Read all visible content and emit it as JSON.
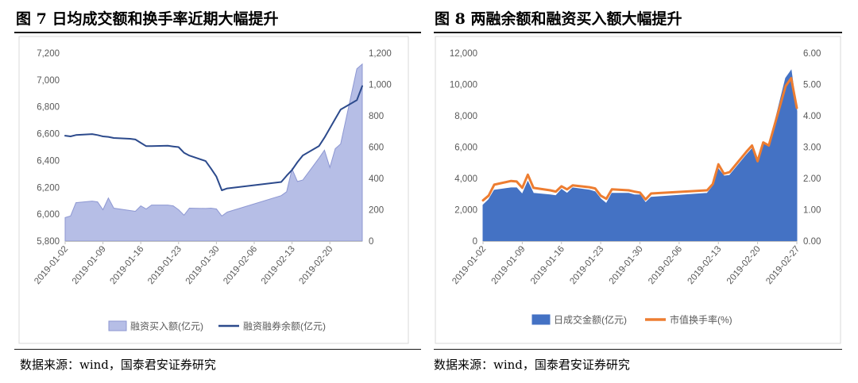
{
  "colors": {
    "fig7_area_fill": "#b6bee6",
    "fig7_area_stroke": "#8d97d2",
    "fig7_line": "#2c4a8c",
    "fig8_area": "#4472c4",
    "fig8_line": "#ed7d31",
    "tick_text": "#595959",
    "axis": "#bfbfbf",
    "chart_bg": "#ffffff"
  },
  "source_label": "数据来源：wind，国泰君安证券研究",
  "chart_data": [
    {
      "type": "area+line",
      "title": "图 7  日均成交额和换手率近期大幅提升",
      "x_ticks": [
        "2019-01-02",
        "2019-01-09",
        "2019-01-16",
        "2019-01-23",
        "2019-01-30",
        "2019-02-06",
        "2019-02-13",
        "2019-02-20"
      ],
      "y_left_ticks": [
        "5,800",
        "6,000",
        "6,200",
        "6,400",
        "6,600",
        "6,800",
        "7,000",
        "7,200"
      ],
      "y_left_range": [
        5800,
        7200
      ],
      "y_right_ticks": [
        "0",
        "200",
        "400",
        "600",
        "800",
        "1,000",
        "1,200"
      ],
      "y_right_range": [
        0,
        1200
      ],
      "legend_position": "bottom",
      "series": [
        {
          "name": "融资买入额(亿元)",
          "kind": "area",
          "axis": "right",
          "points": [
            [
              "2019-01-02",
              150
            ],
            [
              "2019-01-03",
              160
            ],
            [
              "2019-01-04",
              245
            ],
            [
              "2019-01-07",
              255
            ],
            [
              "2019-01-08",
              250
            ],
            [
              "2019-01-09",
              200
            ],
            [
              "2019-01-10",
              275
            ],
            [
              "2019-01-11",
              210
            ],
            [
              "2019-01-14",
              195
            ],
            [
              "2019-01-15",
              190
            ],
            [
              "2019-01-16",
              225
            ],
            [
              "2019-01-17",
              205
            ],
            [
              "2019-01-18",
              230
            ],
            [
              "2019-01-21",
              230
            ],
            [
              "2019-01-22",
              225
            ],
            [
              "2019-01-23",
              200
            ],
            [
              "2019-01-24",
              165
            ],
            [
              "2019-01-25",
              210
            ],
            [
              "2019-01-28",
              208
            ],
            [
              "2019-01-29",
              210
            ],
            [
              "2019-01-30",
              205
            ],
            [
              "2019-01-31",
              160
            ],
            [
              "2019-02-01",
              185
            ],
            [
              "2019-02-11",
              290
            ],
            [
              "2019-02-12",
              315
            ],
            [
              "2019-02-13",
              460
            ],
            [
              "2019-02-14",
              380
            ],
            [
              "2019-02-15",
              390
            ],
            [
              "2019-02-18",
              530
            ],
            [
              "2019-02-19",
              580
            ],
            [
              "2019-02-20",
              470
            ],
            [
              "2019-02-21",
              590
            ],
            [
              "2019-02-22",
              620
            ],
            [
              "2019-02-25",
              1100
            ],
            [
              "2019-02-26",
              1130
            ]
          ]
        },
        {
          "name": "融资融券余额(亿元)",
          "kind": "line",
          "axis": "left",
          "points": [
            [
              "2019-01-02",
              6585
            ],
            [
              "2019-01-03",
              6580
            ],
            [
              "2019-01-04",
              6590
            ],
            [
              "2019-01-07",
              6597
            ],
            [
              "2019-01-08",
              6590
            ],
            [
              "2019-01-09",
              6580
            ],
            [
              "2019-01-10",
              6576
            ],
            [
              "2019-01-11",
              6568
            ],
            [
              "2019-01-14",
              6562
            ],
            [
              "2019-01-15",
              6557
            ],
            [
              "2019-01-16",
              6532
            ],
            [
              "2019-01-17",
              6507
            ],
            [
              "2019-01-18",
              6507
            ],
            [
              "2019-01-21",
              6510
            ],
            [
              "2019-01-22",
              6505
            ],
            [
              "2019-01-23",
              6500
            ],
            [
              "2019-01-24",
              6458
            ],
            [
              "2019-01-25",
              6437
            ],
            [
              "2019-01-28",
              6396
            ],
            [
              "2019-01-29",
              6340
            ],
            [
              "2019-01-30",
              6280
            ],
            [
              "2019-01-31",
              6178
            ],
            [
              "2019-02-01",
              6192
            ],
            [
              "2019-02-11",
              6240
            ],
            [
              "2019-02-12",
              6287
            ],
            [
              "2019-02-13",
              6330
            ],
            [
              "2019-02-14",
              6388
            ],
            [
              "2019-02-15",
              6438
            ],
            [
              "2019-02-18",
              6508
            ],
            [
              "2019-02-19",
              6570
            ],
            [
              "2019-02-20",
              6640
            ],
            [
              "2019-02-21",
              6710
            ],
            [
              "2019-02-22",
              6780
            ],
            [
              "2019-02-25",
              6850
            ],
            [
              "2019-02-26",
              6955
            ]
          ]
        }
      ]
    },
    {
      "type": "area+line",
      "title": "图 8  两融余额和融资买入额大幅提升",
      "x_ticks": [
        "2019-01-02",
        "2019-01-09",
        "2019-01-16",
        "2019-01-23",
        "2019-01-30",
        "2019-02-06",
        "2019-02-13",
        "2019-02-20",
        "2019-02-27"
      ],
      "y_left_ticks": [
        "0",
        "2,000",
        "4,000",
        "6,000",
        "8,000",
        "10,000",
        "12,000"
      ],
      "y_left_range": [
        0,
        12000
      ],
      "y_right_ticks": [
        "0.00",
        "1.00",
        "2.00",
        "3.00",
        "4.00",
        "5.00",
        "6.00"
      ],
      "y_right_range": [
        0,
        6
      ],
      "legend_position": "bottom",
      "series": [
        {
          "name": "日成交金额(亿元)",
          "kind": "area",
          "axis": "left",
          "points": [
            [
              "2019-01-02",
              2300
            ],
            [
              "2019-01-03",
              2650
            ],
            [
              "2019-01-04",
              3250
            ],
            [
              "2019-01-07",
              3400
            ],
            [
              "2019-01-08",
              3400
            ],
            [
              "2019-01-09",
              3000
            ],
            [
              "2019-01-10",
              3800
            ],
            [
              "2019-01-11",
              3050
            ],
            [
              "2019-01-14",
              2950
            ],
            [
              "2019-01-15",
              2900
            ],
            [
              "2019-01-16",
              3300
            ],
            [
              "2019-01-17",
              3050
            ],
            [
              "2019-01-18",
              3400
            ],
            [
              "2019-01-21",
              3250
            ],
            [
              "2019-01-22",
              3150
            ],
            [
              "2019-01-23",
              2700
            ],
            [
              "2019-01-24",
              2400
            ],
            [
              "2019-01-25",
              3050
            ],
            [
              "2019-01-28",
              3050
            ],
            [
              "2019-01-29",
              2950
            ],
            [
              "2019-01-30",
              2950
            ],
            [
              "2019-01-31",
              2450
            ],
            [
              "2019-02-01",
              2800
            ],
            [
              "2019-02-11",
              3050
            ],
            [
              "2019-02-12",
              3500
            ],
            [
              "2019-02-13",
              4600
            ],
            [
              "2019-02-14",
              4150
            ],
            [
              "2019-02-15",
              4200
            ],
            [
              "2019-02-18",
              5500
            ],
            [
              "2019-02-19",
              5900
            ],
            [
              "2019-02-20",
              5100
            ],
            [
              "2019-02-21",
              6250
            ],
            [
              "2019-02-22",
              6050
            ],
            [
              "2019-02-25",
              10400
            ],
            [
              "2019-02-26",
              10900
            ],
            [
              "2019-02-27",
              8300
            ]
          ]
        },
        {
          "name": "市值换手率(%)",
          "kind": "line",
          "axis": "right",
          "points": [
            [
              "2019-01-02",
              1.3
            ],
            [
              "2019-01-03",
              1.45
            ],
            [
              "2019-01-04",
              1.8
            ],
            [
              "2019-01-07",
              1.92
            ],
            [
              "2019-01-08",
              1.9
            ],
            [
              "2019-01-09",
              1.7
            ],
            [
              "2019-01-10",
              2.12
            ],
            [
              "2019-01-11",
              1.7
            ],
            [
              "2019-01-14",
              1.62
            ],
            [
              "2019-01-15",
              1.58
            ],
            [
              "2019-01-16",
              1.75
            ],
            [
              "2019-01-17",
              1.65
            ],
            [
              "2019-01-18",
              1.78
            ],
            [
              "2019-01-21",
              1.72
            ],
            [
              "2019-01-22",
              1.68
            ],
            [
              "2019-01-23",
              1.45
            ],
            [
              "2019-01-24",
              1.35
            ],
            [
              "2019-01-25",
              1.65
            ],
            [
              "2019-01-28",
              1.62
            ],
            [
              "2019-01-29",
              1.58
            ],
            [
              "2019-01-30",
              1.55
            ],
            [
              "2019-01-31",
              1.33
            ],
            [
              "2019-02-01",
              1.52
            ],
            [
              "2019-02-11",
              1.62
            ],
            [
              "2019-02-12",
              1.82
            ],
            [
              "2019-02-13",
              2.45
            ],
            [
              "2019-02-14",
              2.15
            ],
            [
              "2019-02-15",
              2.2
            ],
            [
              "2019-02-18",
              2.85
            ],
            [
              "2019-02-19",
              3.05
            ],
            [
              "2019-02-20",
              2.55
            ],
            [
              "2019-02-21",
              3.15
            ],
            [
              "2019-02-22",
              3.05
            ],
            [
              "2019-02-25",
              4.95
            ],
            [
              "2019-02-26",
              5.2
            ],
            [
              "2019-02-27",
              4.25
            ]
          ]
        }
      ]
    }
  ]
}
